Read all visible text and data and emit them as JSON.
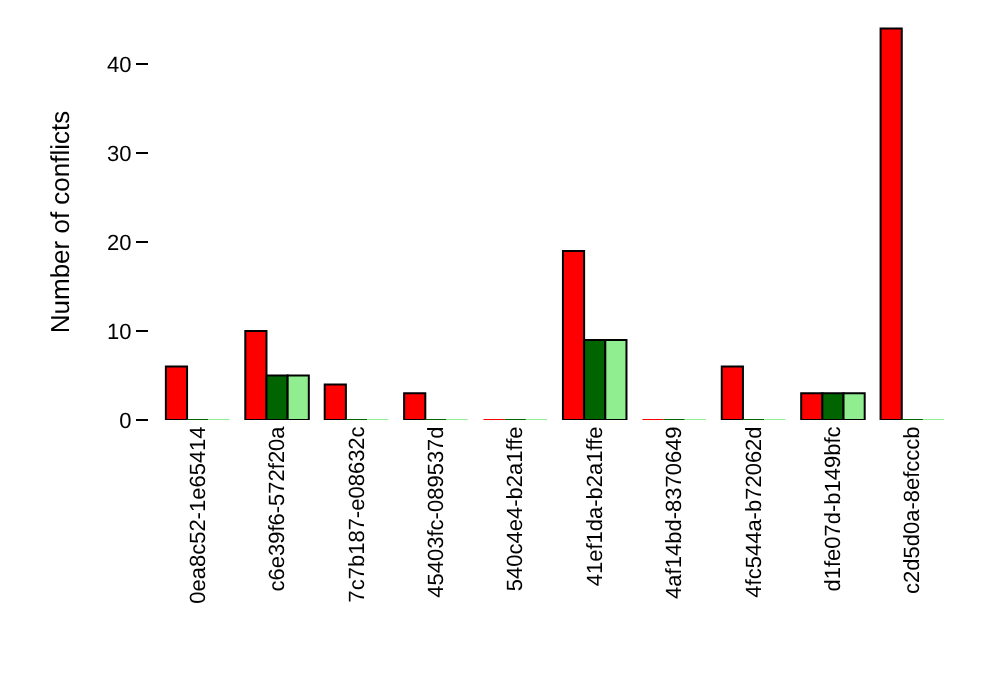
{
  "chart_data": {
    "type": "bar",
    "ylabel": "Number of conflicts",
    "categories": [
      "0ea8c52-1e65414",
      "c6e39f6-572f20a",
      "7c7b187-e08632c",
      "45403fc-089537d",
      "540c4e4-b2a1ffe",
      "41ef1da-b2a1ffe",
      "4af14bd-8370649",
      "4fc544a-b72062d",
      "d1fe07d-b149bfc",
      "c2d5d0a-8efcccb"
    ],
    "series": [
      {
        "color": "#ff0000",
        "values": [
          6,
          10,
          4,
          3,
          0,
          19,
          0,
          6,
          3,
          44
        ]
      },
      {
        "color": "#006400",
        "values": [
          0,
          5,
          0,
          0,
          0,
          9,
          0,
          0,
          3,
          0
        ]
      },
      {
        "color": "#90ee90",
        "values": [
          0,
          5,
          0,
          0,
          0,
          9,
          0,
          0,
          3,
          0
        ]
      }
    ],
    "ylim": [
      0,
      44.5
    ],
    "yticks": [
      0,
      10,
      20,
      30,
      40
    ]
  }
}
